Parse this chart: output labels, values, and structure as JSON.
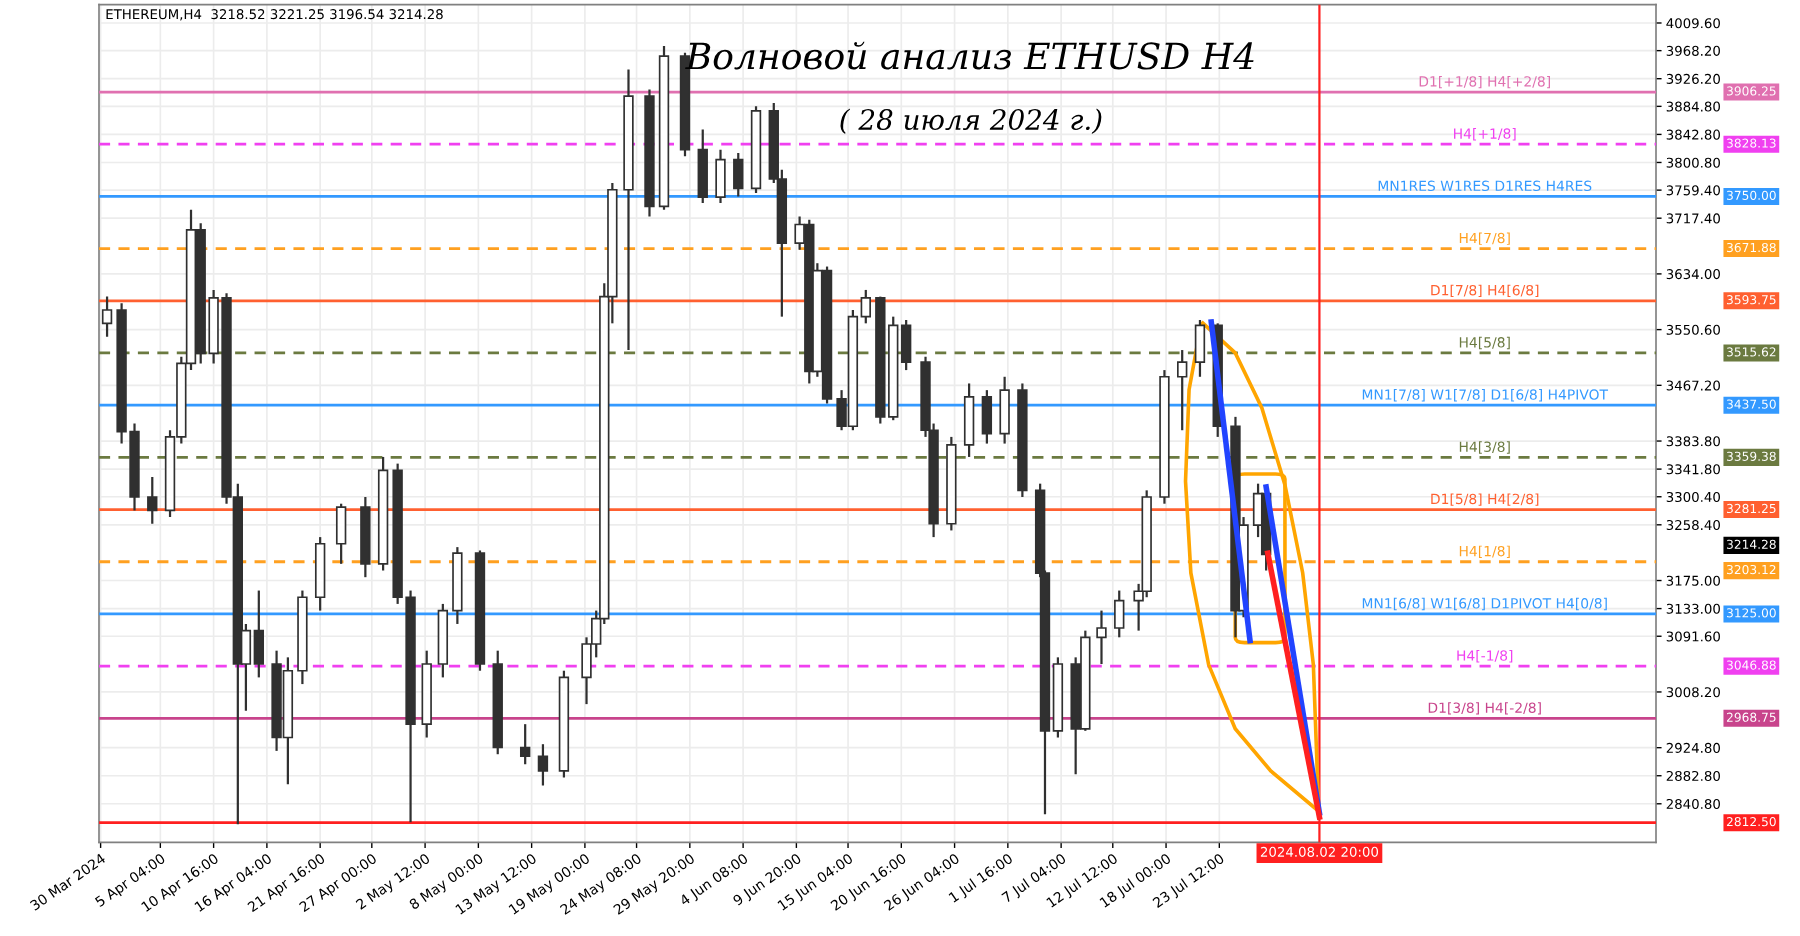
{
  "chart_data": {
    "type": "candlestick",
    "title": "Волновой анализ ETHUSD H4",
    "subtitle": "( 28 июля 2024 г.)",
    "annotations": [
      "ETHEREUM,H4  3218.52 3221.25 3196.54 3214.28",
      "3906.25",
      "3828.13",
      "3750.00",
      "3671.88",
      "3593.75",
      "3515.62",
      "3437.50",
      "3359.38",
      "3281.25",
      "3214.28",
      "3203.12",
      "3125.00",
      "3046.88",
      "2968.75",
      "2812.50"
    ],
    "xlim": [
      "2024-03-29T20:00",
      "2024-09-06T14:00"
    ],
    "xticks": [
      {
        "value": "2024-03-30T00:00",
        "label": "30 Mar 2024"
      },
      {
        "value": "2024-04-05T04:00",
        "label": "5 Apr 04:00"
      },
      {
        "value": "2024-04-10T16:00",
        "label": "10 Apr 16:00"
      },
      {
        "value": "2024-04-16T04:00",
        "label": "16 Apr 04:00"
      },
      {
        "value": "2024-04-21T16:00",
        "label": "21 Apr 16:00"
      },
      {
        "value": "2024-04-27T00:00",
        "label": "27 Apr 00:00"
      },
      {
        "value": "2024-05-02T12:00",
        "label": "2 May 12:00"
      },
      {
        "value": "2024-05-08T00:00",
        "label": "8 May 00:00"
      },
      {
        "value": "2024-05-13T12:00",
        "label": "13 May 12:00"
      },
      {
        "value": "2024-05-19T00:00",
        "label": "19 May 00:00"
      },
      {
        "value": "2024-05-24T08:00",
        "label": "24 May 08:00"
      },
      {
        "value": "2024-05-29T20:00",
        "label": "29 May 20:00"
      },
      {
        "value": "2024-06-04T08:00",
        "label": "4 Jun 08:00"
      },
      {
        "value": "2024-06-09T20:00",
        "label": "9 Jun 20:00"
      },
      {
        "value": "2024-06-15T04:00",
        "label": "15 Jun 04:00"
      },
      {
        "value": "2024-06-20T16:00",
        "label": "20 Jun 16:00"
      },
      {
        "value": "2024-06-26T04:00",
        "label": "26 Jun 04:00"
      },
      {
        "value": "2024-07-01T16:00",
        "label": "1 Jul 16:00"
      },
      {
        "value": "2024-07-07T04:00",
        "label": "7 Jul 04:00"
      },
      {
        "value": "2024-07-12T12:00",
        "label": "12 Jul 12:00"
      },
      {
        "value": "2024-07-18T00:00",
        "label": "18 Jul 00:00"
      },
      {
        "value": "2024-07-23T12:00",
        "label": "23 Jul 12:00"
      }
    ],
    "ylim": [
      2783,
      4037
    ],
    "yticks": [
      {
        "value": 4009.6,
        "label": "4009.60"
      },
      {
        "value": 3968.2,
        "label": "3968.20"
      },
      {
        "value": 3926.2,
        "label": "3926.20"
      },
      {
        "value": 3884.8,
        "label": "3884.80"
      },
      {
        "value": 3842.8,
        "label": "3842.80"
      },
      {
        "value": 3800.8,
        "label": "3800.80"
      },
      {
        "value": 3759.4,
        "label": "3759.40"
      },
      {
        "value": 3717.4,
        "label": "3717.40"
      },
      {
        "value": 3634.0,
        "label": "3634.00"
      },
      {
        "value": 3550.6,
        "label": "3550.60"
      },
      {
        "value": 3467.2,
        "label": "3467.20"
      },
      {
        "value": 3383.8,
        "label": "3383.80"
      },
      {
        "value": 3341.8,
        "label": "3341.80"
      },
      {
        "value": 3300.4,
        "label": "3300.40"
      },
      {
        "value": 3258.4,
        "label": "3258.40"
      },
      {
        "value": 3175.0,
        "label": "3175.00"
      },
      {
        "value": 3133.0,
        "label": "3133.00"
      },
      {
        "value": 3091.6,
        "label": "3091.60"
      },
      {
        "value": 3008.2,
        "label": "3008.20"
      },
      {
        "value": 2924.8,
        "label": "2924.80"
      },
      {
        "value": 2882.8,
        "label": "2882.80"
      },
      {
        "value": 2840.8,
        "label": "2840.80"
      }
    ],
    "grid": true,
    "ref_lines": [
      {
        "axis": "y",
        "value": 3906.25,
        "label": "D1[+1/8] H4[+2/8]",
        "color": "#e070b0",
        "line_style": "solid"
      },
      {
        "axis": "y",
        "value": 3828.13,
        "label": "H4[+1/8]",
        "color": "#f040f0",
        "line_style": "dashed"
      },
      {
        "axis": "y",
        "value": 3750.0,
        "label": "MN1RES W1RES D1RES H4RES",
        "color": "#3399ff",
        "line_style": "solid"
      },
      {
        "axis": "y",
        "value": 3671.88,
        "label": "H4[7/8]",
        "color": "#ffa020",
        "line_style": "dashed"
      },
      {
        "axis": "y",
        "value": 3593.75,
        "label": "D1[7/8] H4[6/8]",
        "color": "#ff6030",
        "line_style": "solid"
      },
      {
        "axis": "y",
        "value": 3515.62,
        "label": "H4[5/8]",
        "color": "#6b7a40",
        "line_style": "dashed"
      },
      {
        "axis": "y",
        "value": 3437.5,
        "label": "MN1[7/8] W1[7/8] D1[6/8] H4PIVOT",
        "color": "#3399ff",
        "line_style": "solid"
      },
      {
        "axis": "y",
        "value": 3359.38,
        "label": "H4[3/8]",
        "color": "#6b7a40",
        "line_style": "dashed"
      },
      {
        "axis": "y",
        "value": 3281.25,
        "label": "D1[5/8] H4[2/8]",
        "color": "#ff6030",
        "line_style": "solid"
      },
      {
        "axis": "y",
        "value": 3203.12,
        "label": "H4[1/8]",
        "color": "#ffa020",
        "line_style": "dashed"
      },
      {
        "axis": "y",
        "value": 3125.0,
        "label": "MN1[6/8] W1[6/8] D1PIVOT H4[0/8]",
        "color": "#3399ff",
        "line_style": "solid"
      },
      {
        "axis": "y",
        "value": 3046.88,
        "label": "H4[-1/8]",
        "color": "#f040f0",
        "line_style": "dashed"
      },
      {
        "axis": "y",
        "value": 2968.75,
        "label": "D1[3/8] H4[-2/8]",
        "color": "#c8448c",
        "line_style": "solid"
      },
      {
        "axis": "y",
        "value": 2812.5,
        "color": "#ff2020",
        "line_style": "solid"
      },
      {
        "axis": "x",
        "value": "2024-08-02T20:00",
        "label": "2024.08.02 20:00",
        "color": "#ff2020",
        "line_style": "solid"
      }
    ],
    "series": [
      {
        "color": "#303030",
        "x": [
          "2024-03-30T16:00",
          "2024-04-01T04:00",
          "2024-04-02T12:00",
          "2024-04-04T08:00",
          "2024-04-06T04:00",
          "2024-04-07T08:00",
          "2024-04-08T08:00",
          "2024-04-09T08:00",
          "2024-04-10T16:00",
          "2024-04-12T00:00",
          "2024-04-13T04:00",
          "2024-04-14T00:00",
          "2024-04-15T08:00",
          "2024-04-17T04:00",
          "2024-04-18T08:00",
          "2024-04-19T20:00",
          "2024-04-21T16:00",
          "2024-04-23T20:00",
          "2024-04-26T08:00",
          "2024-04-28T04:00",
          "2024-04-29T16:00",
          "2024-05-01T00:00",
          "2024-05-02T16:00",
          "2024-05-04T08:00",
          "2024-05-05T20:00",
          "2024-05-08T04:00",
          "2024-05-10T00:00",
          "2024-05-12T20:00",
          "2024-05-14T16:00",
          "2024-05-16T20:00",
          "2024-05-19T04:00",
          "2024-05-20T04:00",
          "2024-05-21T00:00",
          "2024-05-21T20:00",
          "2024-05-23T12:00",
          "2024-05-25T16:00",
          "2024-05-27T04:00",
          "2024-05-29T08:00",
          "2024-05-31T04:00",
          "2024-06-02T00:00",
          "2024-06-03T20:00",
          "2024-06-05T16:00",
          "2024-06-07T12:00",
          "2024-06-08T08:00",
          "2024-06-10T04:00",
          "2024-06-11T04:00",
          "2024-06-12T00:00",
          "2024-06-13T00:00",
          "2024-06-14T12:00",
          "2024-06-15T16:00",
          "2024-06-17T00:00",
          "2024-06-18T12:00",
          "2024-06-19T20:00",
          "2024-06-21T04:00",
          "2024-06-23T04:00",
          "2024-06-24T00:00",
          "2024-06-25T20:00",
          "2024-06-27T16:00",
          "2024-06-29T12:00",
          "2024-07-01T08:00",
          "2024-07-03T04:00",
          "2024-07-05T00:00",
          "2024-07-05T12:00",
          "2024-07-06T20:00",
          "2024-07-08T16:00",
          "2024-07-09T16:00",
          "2024-07-11T08:00",
          "2024-07-13T04:00",
          "2024-07-15T04:00",
          "2024-07-16T00:00",
          "2024-07-17T20:00",
          "2024-07-19T16:00",
          "2024-07-21T12:00",
          "2024-07-23T08:00",
          "2024-07-25T04:00",
          "2024-07-26T00:00",
          "2024-07-27T12:00",
          "2024-07-28T08:00"
        ],
        "ohlc": [
          [
            3560,
            3600,
            3540,
            3580
          ],
          [
            3580,
            3590,
            3380,
            3398
          ],
          [
            3398,
            3410,
            3280,
            3300
          ],
          [
            3300,
            3330,
            3260,
            3280
          ],
          [
            3280,
            3400,
            3270,
            3390
          ],
          [
            3390,
            3510,
            3380,
            3500
          ],
          [
            3500,
            3730,
            3490,
            3700
          ],
          [
            3700,
            3710,
            3500,
            3515
          ],
          [
            3515,
            3610,
            3500,
            3598
          ],
          [
            3598,
            3605,
            3290,
            3300
          ],
          [
            3300,
            3320,
            2810,
            3050
          ],
          [
            3050,
            3110,
            2980,
            3100
          ],
          [
            3100,
            3160,
            3030,
            3050
          ],
          [
            3050,
            3070,
            2920,
            2940
          ],
          [
            2940,
            3060,
            2870,
            3040
          ],
          [
            3040,
            3160,
            3020,
            3150
          ],
          [
            3150,
            3240,
            3130,
            3230
          ],
          [
            3230,
            3290,
            3200,
            3285
          ],
          [
            3285,
            3300,
            3180,
            3200
          ],
          [
            3200,
            3360,
            3190,
            3340
          ],
          [
            3340,
            3350,
            3140,
            3150
          ],
          [
            3150,
            3160,
            2813,
            2960
          ],
          [
            2960,
            3070,
            2940,
            3050
          ],
          [
            3050,
            3140,
            3030,
            3130
          ],
          [
            3130,
            3225,
            3110,
            3216
          ],
          [
            3216,
            3220,
            3040,
            3050
          ],
          [
            3050,
            3070,
            2915,
            2925
          ],
          [
            2925,
            2960,
            2900,
            2912
          ],
          [
            2912,
            2930,
            2868,
            2890
          ],
          [
            2890,
            3040,
            2880,
            3030
          ],
          [
            3030,
            3090,
            2990,
            3080
          ],
          [
            3080,
            3130,
            3060,
            3118
          ],
          [
            3118,
            3620,
            3110,
            3600
          ],
          [
            3600,
            3770,
            3560,
            3760
          ],
          [
            3760,
            3940,
            3520,
            3900
          ],
          [
            3900,
            3910,
            3720,
            3735
          ],
          [
            3735,
            3975,
            3730,
            3960
          ],
          [
            3960,
            3965,
            3810,
            3820
          ],
          [
            3820,
            3850,
            3740,
            3749
          ],
          [
            3749,
            3820,
            3740,
            3805
          ],
          [
            3805,
            3815,
            3750,
            3762
          ],
          [
            3762,
            3885,
            3755,
            3878
          ],
          [
            3878,
            3890,
            3770,
            3776
          ],
          [
            3776,
            3790,
            3570,
            3680
          ],
          [
            3680,
            3720,
            3670,
            3708
          ],
          [
            3708,
            3715,
            3470,
            3488
          ],
          [
            3488,
            3650,
            3480,
            3639
          ],
          [
            3639,
            3645,
            3440,
            3447
          ],
          [
            3447,
            3460,
            3400,
            3406
          ],
          [
            3406,
            3580,
            3400,
            3570
          ],
          [
            3570,
            3610,
            3560,
            3598
          ],
          [
            3598,
            3600,
            3410,
            3420
          ],
          [
            3420,
            3570,
            3415,
            3557
          ],
          [
            3557,
            3565,
            3490,
            3502
          ],
          [
            3502,
            3510,
            3390,
            3400
          ],
          [
            3400,
            3410,
            3240,
            3260
          ],
          [
            3260,
            3390,
            3250,
            3378
          ],
          [
            3378,
            3470,
            3360,
            3450
          ],
          [
            3450,
            3460,
            3380,
            3395
          ],
          [
            3395,
            3480,
            3380,
            3460
          ],
          [
            3460,
            3470,
            3300,
            3310
          ],
          [
            3310,
            3320,
            3180,
            3186
          ],
          [
            3186,
            3190,
            2825,
            2950
          ],
          [
            2950,
            3060,
            2940,
            3050
          ],
          [
            3050,
            3060,
            2885,
            2953
          ],
          [
            2953,
            3100,
            2950,
            3090
          ],
          [
            3090,
            3130,
            3050,
            3104
          ],
          [
            3104,
            3160,
            3090,
            3145
          ],
          [
            3145,
            3170,
            3100,
            3159
          ],
          [
            3159,
            3310,
            3150,
            3300
          ],
          [
            3300,
            3490,
            3290,
            3480
          ],
          [
            3480,
            3520,
            3400,
            3502
          ],
          [
            3502,
            3565,
            3480,
            3557
          ],
          [
            3557,
            3560,
            3390,
            3406
          ],
          [
            3406,
            3420,
            3090,
            3130
          ],
          [
            3130,
            3270,
            3120,
            3258
          ],
          [
            3258,
            3320,
            3240,
            3305
          ],
          [
            3305,
            3310,
            3190,
            3214
          ]
        ]
      },
      {
        "type": "line",
        "color": "#2244ff",
        "x": [
          "2024-07-22T16:00",
          "2024-07-26T16:00"
        ],
        "values": [
          3562,
          3085
        ]
      },
      {
        "type": "line",
        "color": "#2244ff",
        "x": [
          "2024-07-28T08:00",
          "2024-08-02T20:00"
        ],
        "values": [
          3315,
          2827
        ]
      },
      {
        "type": "line",
        "color": "#ff2020",
        "x": [
          "2024-07-28T12:00",
          "2024-08-02T20:00"
        ],
        "values": [
          3216,
          2821
        ]
      }
    ]
  }
}
